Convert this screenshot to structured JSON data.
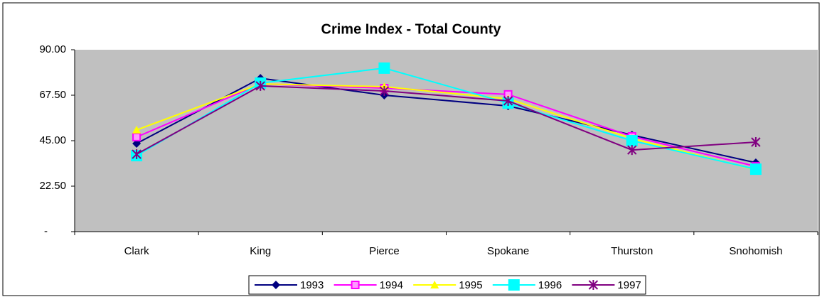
{
  "chart_data": {
    "type": "line",
    "title": "Crime Index - Total County",
    "categories": [
      "Clark",
      "King",
      "Pierce",
      "Spokane",
      "Thurston",
      "Snohomish"
    ],
    "series": [
      {
        "name": "1993",
        "color": "#000080",
        "marker": "diamond",
        "values": [
          43.6,
          75.9,
          67.5,
          62.2,
          47.8,
          34.1
        ]
      },
      {
        "name": "1994",
        "color": "#ff00ff",
        "marker": "square",
        "values": [
          46.8,
          73.1,
          71.0,
          67.9,
          47.1,
          32.3
        ]
      },
      {
        "name": "1995",
        "color": "#ffff00",
        "marker": "triangle",
        "values": [
          50.3,
          73.1,
          71.7,
          65.7,
          46.1,
          30.6
        ]
      },
      {
        "name": "1996",
        "color": "#00ffff",
        "marker": "bigsquare",
        "values": [
          37.6,
          73.5,
          80.9,
          63.6,
          45.0,
          30.9
        ]
      },
      {
        "name": "1997",
        "color": "#800080",
        "marker": "star",
        "values": [
          38.3,
          72.1,
          69.6,
          64.7,
          40.4,
          44.3
        ]
      }
    ],
    "ylim": [
      0,
      90
    ],
    "yticks": [
      {
        "value": 0,
        "label": "-"
      },
      {
        "value": 22.5,
        "label": "22.50"
      },
      {
        "value": 45,
        "label": "45.00"
      },
      {
        "value": 67.5,
        "label": "67.50"
      },
      {
        "value": 90,
        "label": "90.00"
      }
    ],
    "legend": "bottom"
  }
}
